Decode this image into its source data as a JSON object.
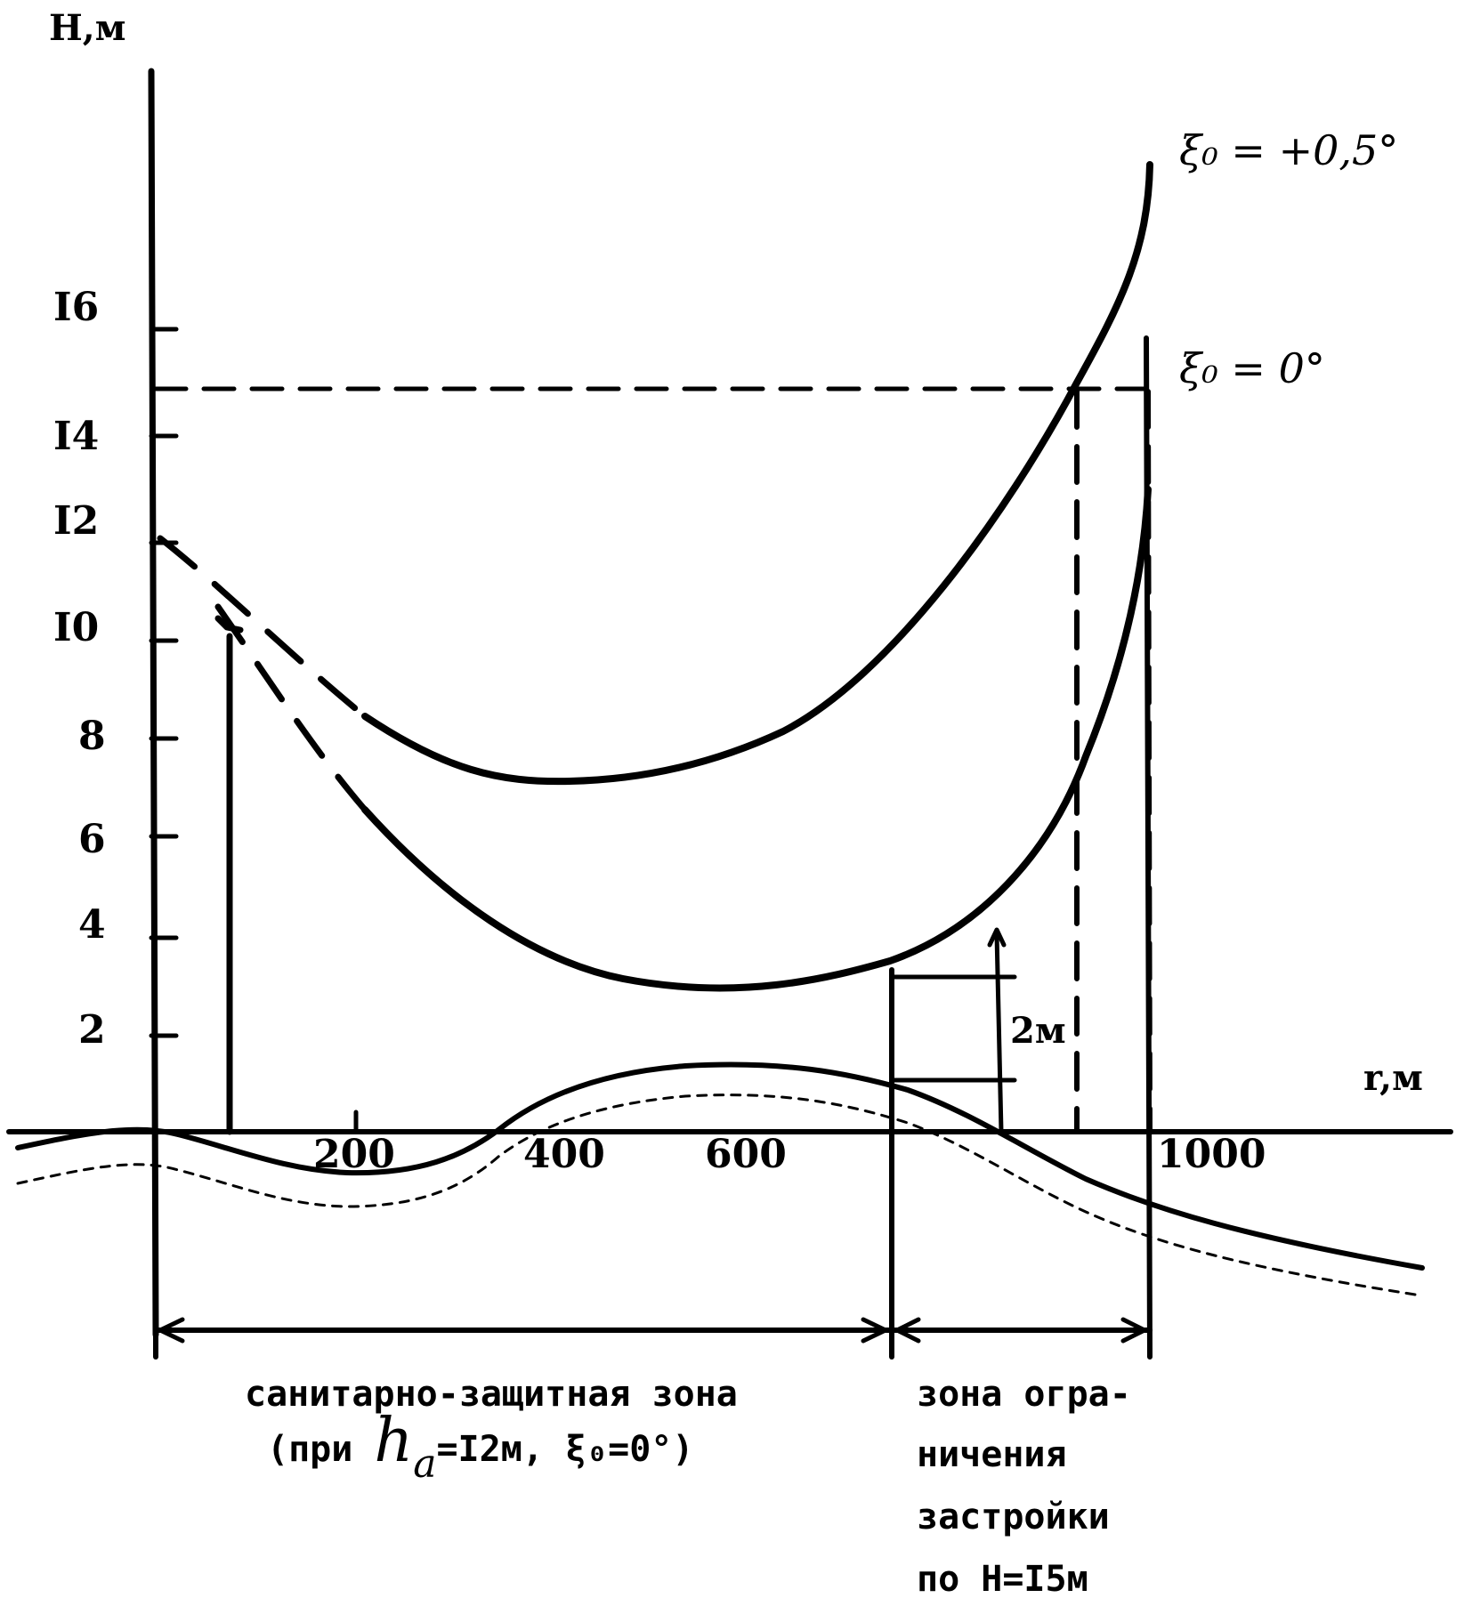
{
  "y_axis": {
    "title": "H,м",
    "ticks": [
      "2",
      "4",
      "6",
      "8",
      "I0",
      "I2",
      "I4",
      "I6"
    ]
  },
  "x_axis": {
    "title": "r,м",
    "ticks": [
      "200",
      "400",
      "600",
      "1000"
    ]
  },
  "curves": {
    "upper_label": "ξ₀ = +0,5°",
    "lower_label": "ξ₀ = 0°"
  },
  "annotations": {
    "height_offset": "2м"
  },
  "zones": {
    "sanitary_line1": "санитарно-защитная зона",
    "sanitary_line2_prefix": "(при ",
    "sanitary_h": "h",
    "sanitary_sub": "a",
    "sanitary_line2_suffix": "=I2м, ξ₀=0°)",
    "restriction_line1": "зона огра-",
    "restriction_line2": "ничения",
    "restriction_line3": "застройки",
    "restriction_line4": "по H=I5м"
  },
  "colors": {
    "ink": "#000000",
    "paper": "#ffffff"
  }
}
